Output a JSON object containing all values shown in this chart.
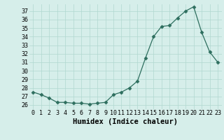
{
  "x": [
    0,
    1,
    2,
    3,
    4,
    5,
    6,
    7,
    8,
    9,
    10,
    11,
    12,
    13,
    14,
    15,
    16,
    17,
    18,
    19,
    20,
    21,
    22,
    23
  ],
  "y": [
    27.5,
    27.2,
    26.8,
    26.3,
    26.3,
    26.2,
    26.2,
    26.1,
    26.2,
    26.3,
    27.2,
    27.5,
    28.0,
    28.8,
    31.5,
    34.0,
    35.2,
    35.3,
    36.2,
    37.0,
    37.5,
    34.5,
    32.2,
    31.0
  ],
  "line_color": "#2d6e5e",
  "marker": "D",
  "marker_size": 2.5,
  "bg_color": "#d6eeea",
  "grid_color": "#b0d8d0",
  "xlabel": "Humidex (Indice chaleur)",
  "xlim": [
    -0.5,
    23.5
  ],
  "ylim": [
    25.5,
    37.8
  ],
  "yticks": [
    26,
    27,
    28,
    29,
    30,
    31,
    32,
    33,
    34,
    35,
    36,
    37
  ],
  "xtick_labels": [
    "0",
    "1",
    "2",
    "3",
    "4",
    "5",
    "6",
    "7",
    "8",
    "9",
    "10",
    "11",
    "12",
    "13",
    "14",
    "15",
    "16",
    "17",
    "18",
    "19",
    "20",
    "21",
    "22",
    "23"
  ],
  "tick_fontsize": 6,
  "xlabel_fontsize": 7.5
}
